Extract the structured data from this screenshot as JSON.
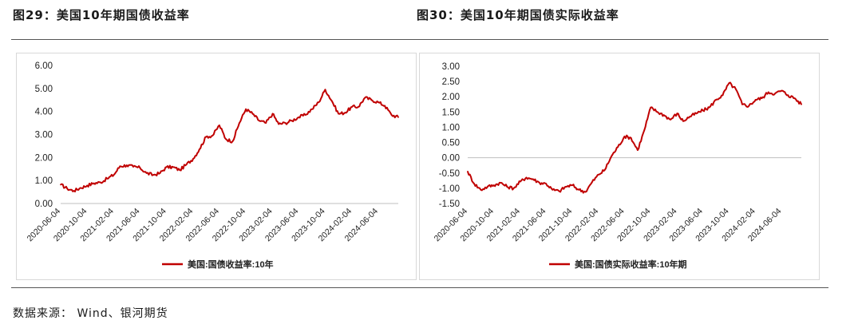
{
  "figures": [
    {
      "title": "图29：美国10年期国债收益率"
    },
    {
      "title": "图30：美国10年期国债实际收益率"
    }
  ],
  "source": "数据来源： Wind、银河期货",
  "chart_data": [
    {
      "type": "line",
      "title": "",
      "xlabel": "",
      "ylabel": "",
      "ylim": [
        0,
        6
      ],
      "yticks": [
        "6.00",
        "5.00",
        "4.00",
        "3.00",
        "2.00",
        "1.00",
        "0.00"
      ],
      "xticks": [
        "2020-06-04",
        "2020-10-04",
        "2021-02-04",
        "2021-06-04",
        "2021-10-04",
        "2022-02-04",
        "2022-06-04",
        "2022-10-04",
        "2023-02-04",
        "2023-06-04",
        "2023-10-04",
        "2024-02-04",
        "2024-06-04"
      ],
      "grid": false,
      "legend_position": "bottom",
      "color": "#c00000",
      "series": [
        {
          "name": "美国:国债收益率:10年",
          "x": [
            "2020-06-04",
            "2020-07-04",
            "2020-08-04",
            "2020-09-04",
            "2020-10-04",
            "2020-11-04",
            "2020-12-04",
            "2021-01-04",
            "2021-02-04",
            "2021-03-04",
            "2021-04-04",
            "2021-05-04",
            "2021-06-04",
            "2021-07-04",
            "2021-08-04",
            "2021-09-04",
            "2021-10-04",
            "2021-11-04",
            "2021-12-04",
            "2022-01-04",
            "2022-02-04",
            "2022-03-04",
            "2022-04-04",
            "2022-05-04",
            "2022-06-04",
            "2022-07-04",
            "2022-08-04",
            "2022-09-04",
            "2022-10-04",
            "2022-11-04",
            "2022-12-04",
            "2023-01-04",
            "2023-02-04",
            "2023-03-04",
            "2023-04-04",
            "2023-05-04",
            "2023-06-04",
            "2023-07-04",
            "2023-08-04",
            "2023-09-04",
            "2023-10-04",
            "2023-11-04",
            "2023-12-04",
            "2024-01-04",
            "2024-02-04",
            "2024-03-04",
            "2024-04-04",
            "2024-05-04",
            "2024-06-04",
            "2024-07-04",
            "2024-08-04",
            "2024-09-04"
          ],
          "values": [
            0.82,
            0.65,
            0.55,
            0.68,
            0.78,
            0.88,
            0.92,
            1.08,
            1.25,
            1.62,
            1.66,
            1.6,
            1.55,
            1.32,
            1.24,
            1.32,
            1.58,
            1.58,
            1.45,
            1.7,
            1.95,
            2.35,
            2.9,
            2.95,
            3.4,
            2.8,
            2.7,
            3.5,
            4.1,
            3.9,
            3.6,
            3.5,
            3.9,
            3.45,
            3.5,
            3.6,
            3.75,
            3.85,
            4.1,
            4.4,
            4.95,
            4.45,
            3.9,
            3.95,
            4.2,
            4.2,
            4.6,
            4.5,
            4.4,
            4.25,
            3.85,
            3.75
          ]
        }
      ]
    },
    {
      "type": "line",
      "title": "",
      "xlabel": "",
      "ylabel": "",
      "ylim": [
        -1.5,
        3.0
      ],
      "yticks": [
        "3.00",
        "2.50",
        "2.00",
        "1.50",
        "1.00",
        "0.50",
        "0.00",
        "-0.50",
        "-1.00",
        "-1.50"
      ],
      "xticks": [
        "2020-06-04",
        "2020-10-04",
        "2021-02-04",
        "2021-06-04",
        "2021-10-04",
        "2022-02-04",
        "2022-06-04",
        "2022-10-04",
        "2023-02-04",
        "2023-06-04",
        "2023-10-04",
        "2024-02-04",
        "2024-06-04"
      ],
      "grid": false,
      "legend_position": "bottom",
      "color": "#c00000",
      "series": [
        {
          "name": "美国:国债实际收益率:10年期",
          "x": [
            "2020-06-04",
            "2020-07-04",
            "2020-08-04",
            "2020-09-04",
            "2020-10-04",
            "2020-11-04",
            "2020-12-04",
            "2021-01-04",
            "2021-02-04",
            "2021-03-04",
            "2021-04-04",
            "2021-05-04",
            "2021-06-04",
            "2021-07-04",
            "2021-08-04",
            "2021-09-04",
            "2021-10-04",
            "2021-11-04",
            "2021-12-04",
            "2022-01-04",
            "2022-02-04",
            "2022-03-04",
            "2022-04-04",
            "2022-05-04",
            "2022-06-04",
            "2022-07-04",
            "2022-08-04",
            "2022-09-04",
            "2022-10-04",
            "2022-11-04",
            "2022-12-04",
            "2023-01-04",
            "2023-02-04",
            "2023-03-04",
            "2023-04-04",
            "2023-05-04",
            "2023-06-04",
            "2023-07-04",
            "2023-08-04",
            "2023-09-04",
            "2023-10-04",
            "2023-11-04",
            "2023-12-04",
            "2024-01-04",
            "2024-02-04",
            "2024-03-04",
            "2024-04-04",
            "2024-05-04",
            "2024-06-04",
            "2024-07-04",
            "2024-08-04",
            "2024-09-04"
          ],
          "values": [
            -0.45,
            -0.85,
            -1.05,
            -0.95,
            -0.9,
            -0.82,
            -0.95,
            -1.0,
            -0.78,
            -0.65,
            -0.7,
            -0.82,
            -0.85,
            -1.05,
            -1.1,
            -0.95,
            -0.9,
            -1.05,
            -1.12,
            -0.8,
            -0.55,
            -0.4,
            0.05,
            0.35,
            0.7,
            0.65,
            0.25,
            0.9,
            1.65,
            1.5,
            1.4,
            1.25,
            1.45,
            1.2,
            1.35,
            1.45,
            1.55,
            1.65,
            1.9,
            2.05,
            2.45,
            2.25,
            1.75,
            1.7,
            1.9,
            1.95,
            2.15,
            2.1,
            2.2,
            2.05,
            1.95,
            1.75
          ]
        }
      ]
    }
  ]
}
